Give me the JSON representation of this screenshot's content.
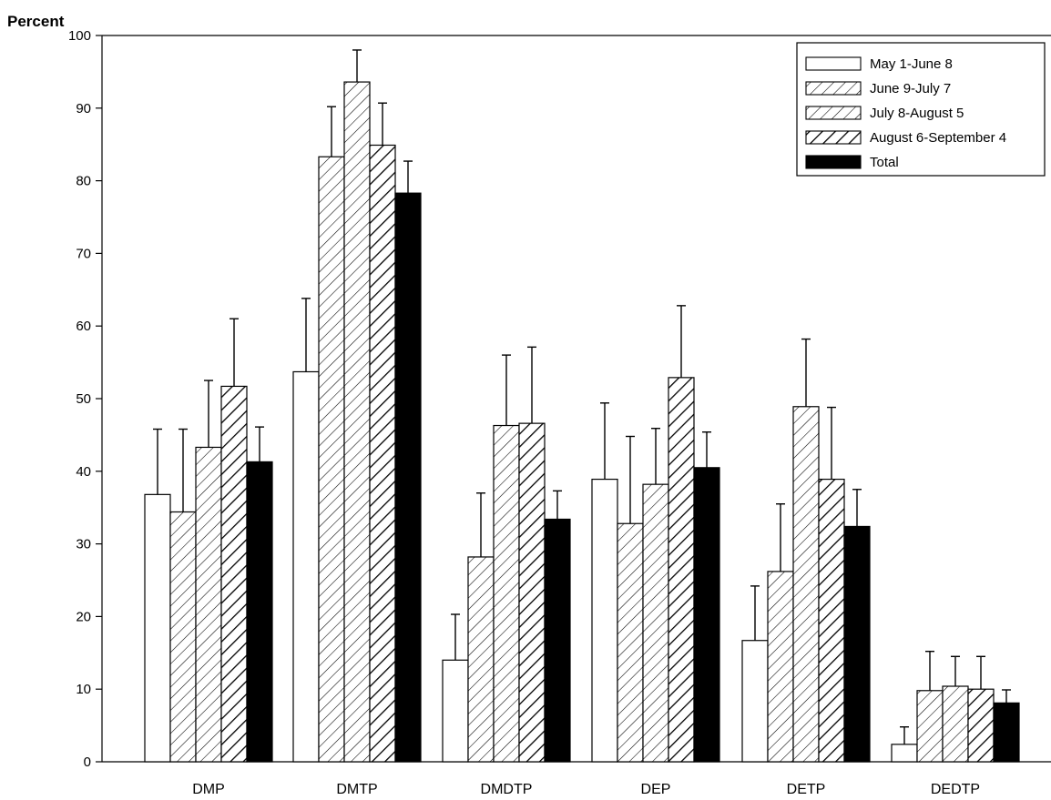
{
  "chart_data": {
    "type": "bar",
    "ylabel": "Percent",
    "xlabel": "",
    "ylim": [
      0,
      100
    ],
    "yticks": [
      0,
      10,
      20,
      30,
      40,
      50,
      60,
      70,
      80,
      90,
      100
    ],
    "categories": [
      "DMP",
      "DMTP",
      "DMDTP",
      "DEP",
      "DETP",
      "DEDTP"
    ],
    "grid": false,
    "legend_position": "top-right",
    "series": [
      {
        "name": "May 1-June 8",
        "fill": "white",
        "values": [
          36.8,
          53.7,
          14.0,
          38.9,
          16.7,
          2.4
        ],
        "error_upper": [
          45.8,
          63.8,
          20.3,
          49.4,
          24.2,
          4.8
        ]
      },
      {
        "name": "June 9-July 7",
        "fill": "hatch-light",
        "values": [
          34.4,
          83.3,
          28.2,
          32.8,
          26.2,
          9.8
        ],
        "error_upper": [
          45.8,
          90.2,
          37.0,
          44.8,
          35.5,
          15.2
        ]
      },
      {
        "name": "July 8-August 5",
        "fill": "hatch-light",
        "values": [
          43.3,
          93.6,
          46.3,
          38.2,
          48.9,
          10.4
        ],
        "error_upper": [
          52.5,
          98.0,
          56.0,
          45.9,
          58.2,
          14.5
        ]
      },
      {
        "name": "August 6-September 4",
        "fill": "hatch-heavy",
        "values": [
          51.7,
          84.9,
          46.6,
          52.9,
          38.9,
          10.0
        ],
        "error_upper": [
          61.0,
          90.7,
          57.1,
          62.8,
          48.8,
          14.5
        ]
      },
      {
        "name": "Total",
        "fill": "black",
        "values": [
          41.3,
          78.3,
          33.4,
          40.5,
          32.4,
          8.1
        ],
        "error_upper": [
          46.1,
          82.7,
          37.3,
          45.4,
          37.5,
          9.9
        ]
      }
    ]
  }
}
